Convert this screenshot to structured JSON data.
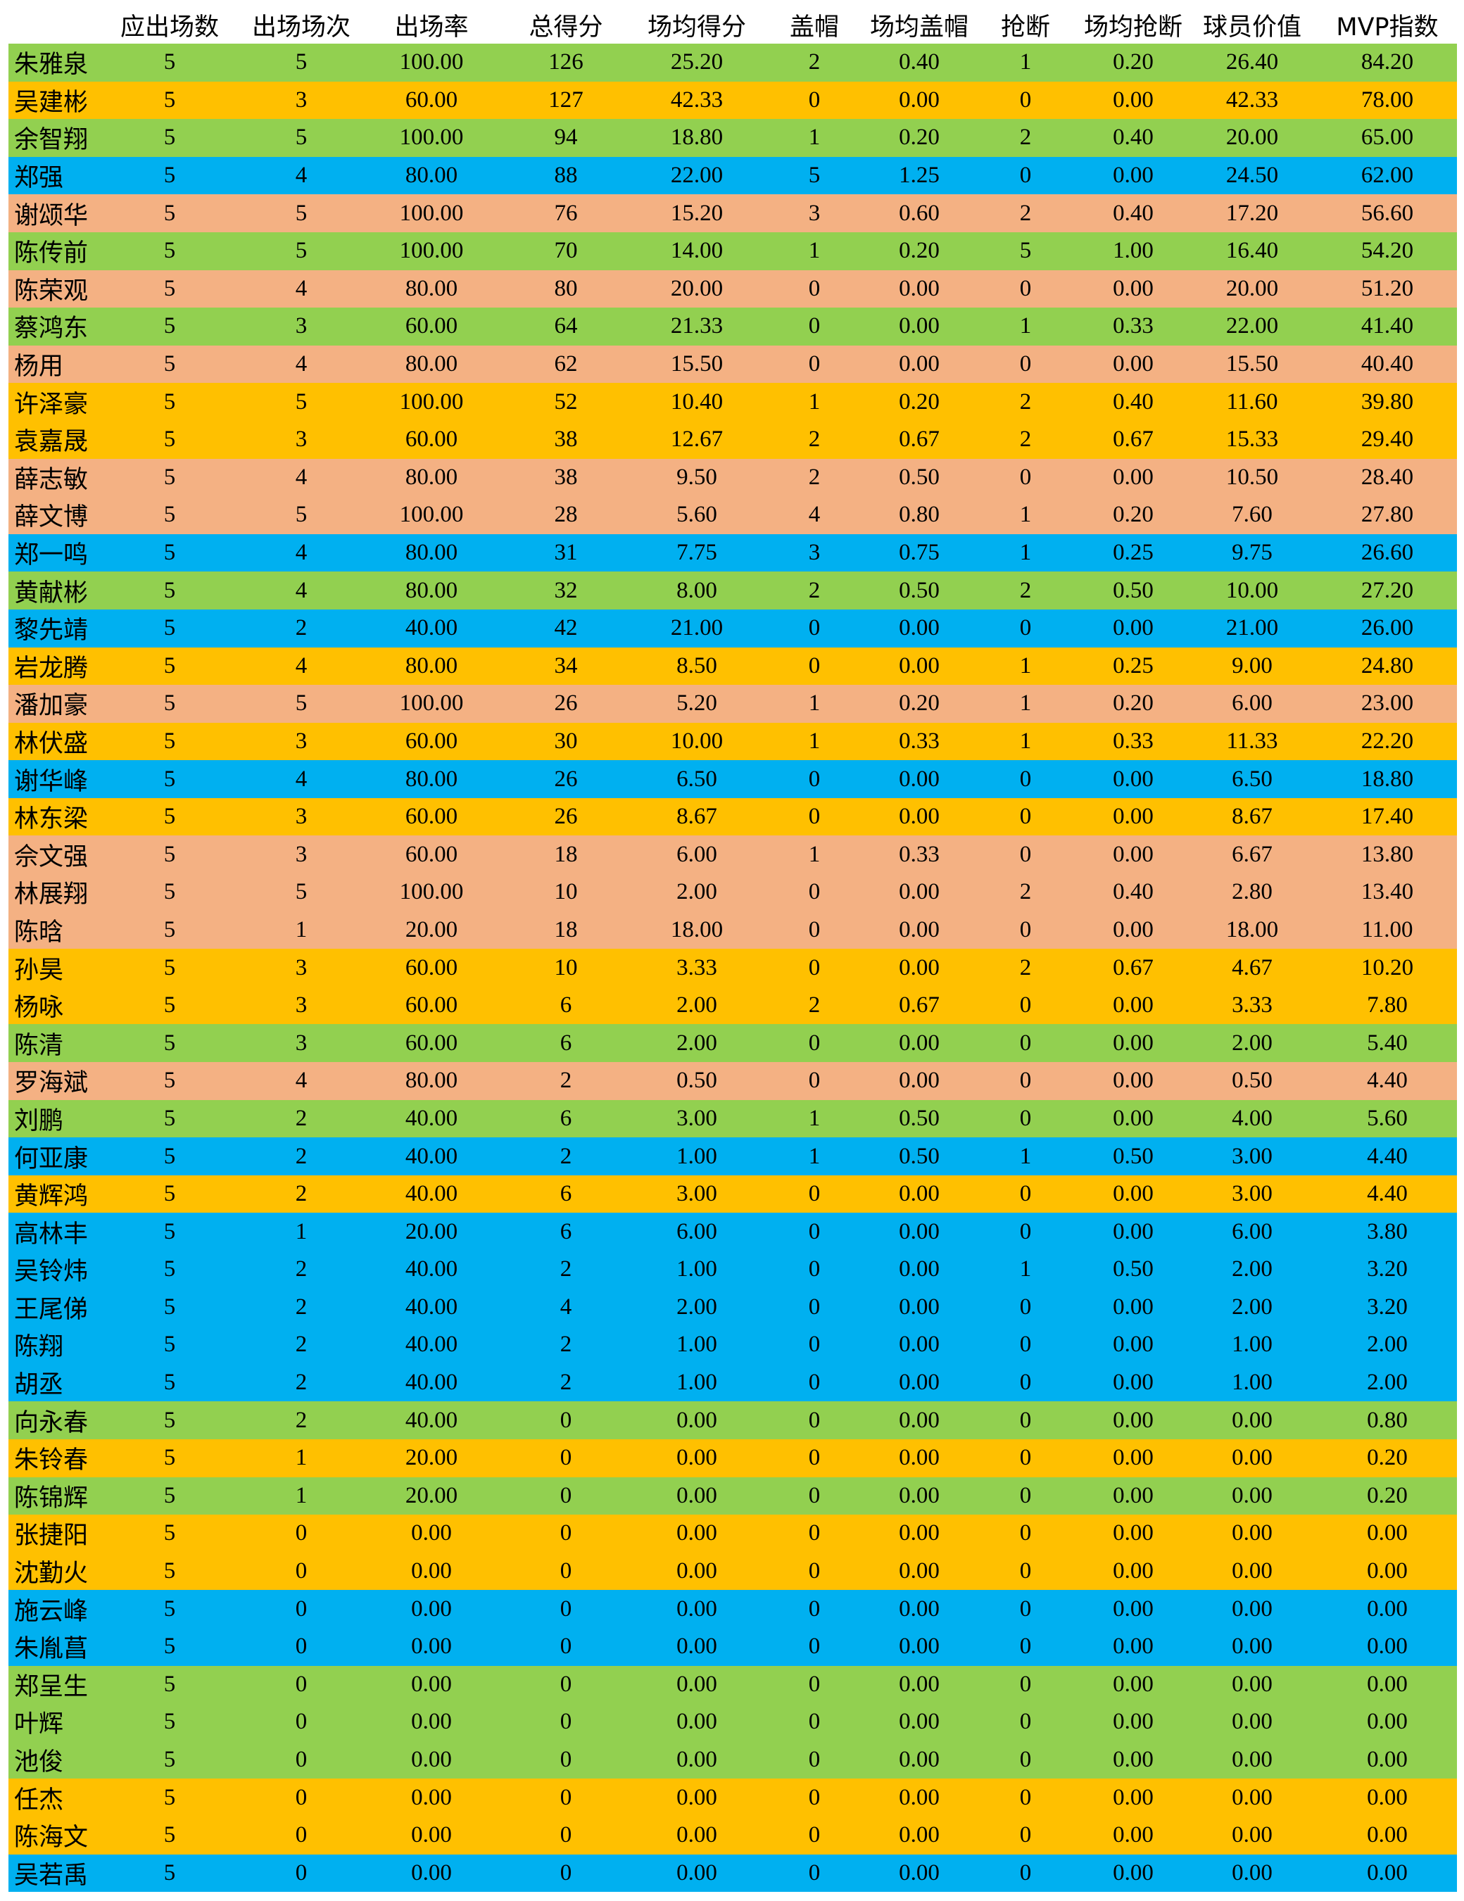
{
  "colors": {
    "green": "#92d050",
    "orange": "#ffc000",
    "blue": "#00b0f0",
    "peach": "#f4b183"
  },
  "headers": [
    "",
    "应出场数",
    "出场场次",
    "出场率",
    "总得分",
    "场均得分",
    "盖帽",
    "场均盖帽",
    "抢断",
    "场均抢断",
    "球员价值",
    "MVP指数"
  ],
  "rows": [
    {
      "c": "green",
      "v": [
        "朱雅泉",
        "5",
        "5",
        "100.00",
        "126",
        "25.20",
        "2",
        "0.40",
        "1",
        "0.20",
        "26.40",
        "84.20"
      ]
    },
    {
      "c": "orange",
      "v": [
        "吴建彬",
        "5",
        "3",
        "60.00",
        "127",
        "42.33",
        "0",
        "0.00",
        "0",
        "0.00",
        "42.33",
        "78.00"
      ]
    },
    {
      "c": "green",
      "v": [
        "余智翔",
        "5",
        "5",
        "100.00",
        "94",
        "18.80",
        "1",
        "0.20",
        "2",
        "0.40",
        "20.00",
        "65.00"
      ]
    },
    {
      "c": "blue",
      "v": [
        " 郑强",
        "5",
        "4",
        "80.00",
        "88",
        "22.00",
        "5",
        "1.25",
        "0",
        "0.00",
        "24.50",
        "62.00"
      ]
    },
    {
      "c": "peach",
      "v": [
        "谢颂华",
        "5",
        "5",
        "100.00",
        "76",
        "15.20",
        "3",
        "0.60",
        "2",
        "0.40",
        "17.20",
        "56.60"
      ]
    },
    {
      "c": "green",
      "v": [
        "陈传前",
        "5",
        "5",
        "100.00",
        "70",
        "14.00",
        "1",
        "0.20",
        "5",
        "1.00",
        "16.40",
        "54.20"
      ]
    },
    {
      "c": "peach",
      "v": [
        "陈荣观",
        "5",
        "4",
        "80.00",
        "80",
        "20.00",
        "0",
        "0.00",
        "0",
        "0.00",
        "20.00",
        "51.20"
      ]
    },
    {
      "c": "green",
      "v": [
        "蔡鸿东",
        "5",
        "3",
        "60.00",
        "64",
        "21.33",
        "0",
        "0.00",
        "1",
        "0.33",
        "22.00",
        "41.40"
      ]
    },
    {
      "c": "peach",
      "v": [
        " 杨用",
        "5",
        "4",
        "80.00",
        "62",
        "15.50",
        "0",
        "0.00",
        "0",
        "0.00",
        "15.50",
        "40.40"
      ]
    },
    {
      "c": "orange",
      "v": [
        "许泽豪",
        "5",
        "5",
        "100.00",
        "52",
        "10.40",
        "1",
        "0.20",
        "2",
        "0.40",
        "11.60",
        "39.80"
      ]
    },
    {
      "c": "orange",
      "v": [
        "袁嘉晟",
        "5",
        "3",
        "60.00",
        "38",
        "12.67",
        "2",
        "0.67",
        "2",
        "0.67",
        "15.33",
        "29.40"
      ]
    },
    {
      "c": "peach",
      "v": [
        "薛志敏",
        "5",
        "4",
        "80.00",
        "38",
        "9.50",
        "2",
        "0.50",
        "0",
        "0.00",
        "10.50",
        "28.40"
      ]
    },
    {
      "c": "peach",
      "v": [
        "薛文博",
        "5",
        "5",
        "100.00",
        "28",
        "5.60",
        "4",
        "0.80",
        "1",
        "0.20",
        "7.60",
        "27.80"
      ]
    },
    {
      "c": "blue",
      "v": [
        "郑一鸣",
        "5",
        "4",
        "80.00",
        "31",
        "7.75",
        "3",
        "0.75",
        "1",
        "0.25",
        "9.75",
        "26.60"
      ]
    },
    {
      "c": "green",
      "v": [
        "黄献彬",
        "5",
        "4",
        "80.00",
        "32",
        "8.00",
        "2",
        "0.50",
        "2",
        "0.50",
        "10.00",
        "27.20"
      ]
    },
    {
      "c": "blue",
      "v": [
        "黎先靖",
        "5",
        "2",
        "40.00",
        "42",
        "21.00",
        "0",
        "0.00",
        "0",
        "0.00",
        "21.00",
        "26.00"
      ]
    },
    {
      "c": "orange",
      "v": [
        "岩龙腾",
        "5",
        "4",
        "80.00",
        "34",
        "8.50",
        "0",
        "0.00",
        "1",
        "0.25",
        "9.00",
        "24.80"
      ]
    },
    {
      "c": "peach",
      "v": [
        "潘加豪",
        "5",
        "5",
        "100.00",
        "26",
        "5.20",
        "1",
        "0.20",
        "1",
        "0.20",
        "6.00",
        "23.00"
      ]
    },
    {
      "c": "orange",
      "v": [
        "林伏盛",
        "5",
        "3",
        "60.00",
        "30",
        "10.00",
        "1",
        "0.33",
        "1",
        "0.33",
        "11.33",
        "22.20"
      ]
    },
    {
      "c": "blue",
      "v": [
        "谢华峰",
        "5",
        "4",
        "80.00",
        "26",
        "6.50",
        "0",
        "0.00",
        "0",
        "0.00",
        "6.50",
        "18.80"
      ]
    },
    {
      "c": "orange",
      "v": [
        "林东梁",
        "5",
        "3",
        "60.00",
        "26",
        "8.67",
        "0",
        "0.00",
        "0",
        "0.00",
        "8.67",
        "17.40"
      ]
    },
    {
      "c": "peach",
      "v": [
        "佘文强",
        "5",
        "3",
        "60.00",
        "18",
        "6.00",
        "1",
        "0.33",
        "0",
        "0.00",
        "6.67",
        "13.80"
      ]
    },
    {
      "c": "peach",
      "v": [
        "林展翔",
        "5",
        "5",
        "100.00",
        "10",
        "2.00",
        "0",
        "0.00",
        "2",
        "0.40",
        "2.80",
        "13.40"
      ]
    },
    {
      "c": "peach",
      "v": [
        " 陈晗",
        "5",
        "1",
        "20.00",
        "18",
        "18.00",
        "0",
        "0.00",
        "0",
        "0.00",
        "18.00",
        "11.00"
      ]
    },
    {
      "c": "orange",
      "v": [
        " 孙昊",
        "5",
        "3",
        "60.00",
        "10",
        "3.33",
        "0",
        "0.00",
        "2",
        "0.67",
        "4.67",
        "10.20"
      ]
    },
    {
      "c": "orange",
      "v": [
        " 杨咏",
        "5",
        "3",
        "60.00",
        "6",
        "2.00",
        "2",
        "0.67",
        "0",
        "0.00",
        "3.33",
        "7.80"
      ]
    },
    {
      "c": "green",
      "v": [
        " 陈清",
        "5",
        "3",
        "60.00",
        "6",
        "2.00",
        "0",
        "0.00",
        "0",
        "0.00",
        "2.00",
        "5.40"
      ]
    },
    {
      "c": "peach",
      "v": [
        "罗海斌",
        "5",
        "4",
        "80.00",
        "2",
        "0.50",
        "0",
        "0.00",
        "0",
        "0.00",
        "0.50",
        "4.40"
      ]
    },
    {
      "c": "green",
      "v": [
        " 刘鹏",
        "5",
        "2",
        "40.00",
        "6",
        "3.00",
        "1",
        "0.50",
        "0",
        "0.00",
        "4.00",
        "5.60"
      ]
    },
    {
      "c": "blue",
      "v": [
        "何亚康",
        "5",
        "2",
        "40.00",
        "2",
        "1.00",
        "1",
        "0.50",
        "1",
        "0.50",
        "3.00",
        "4.40"
      ]
    },
    {
      "c": "orange",
      "v": [
        "黄辉鸿",
        "5",
        "2",
        "40.00",
        "6",
        "3.00",
        "0",
        "0.00",
        "0",
        "0.00",
        "3.00",
        "4.40"
      ]
    },
    {
      "c": "blue",
      "v": [
        "高林丰",
        "5",
        "1",
        "20.00",
        "6",
        "6.00",
        "0",
        "0.00",
        "0",
        "0.00",
        "6.00",
        "3.80"
      ]
    },
    {
      "c": "blue",
      "v": [
        "吴铃炜",
        "5",
        "2",
        "40.00",
        "2",
        "1.00",
        "0",
        "0.00",
        "1",
        "0.50",
        "2.00",
        "3.20"
      ]
    },
    {
      "c": "blue",
      "v": [
        "王尾俤",
        "5",
        "2",
        "40.00",
        "4",
        "2.00",
        "0",
        "0.00",
        "0",
        "0.00",
        "2.00",
        "3.20"
      ]
    },
    {
      "c": "blue",
      "v": [
        " 陈翔",
        "5",
        "2",
        "40.00",
        "2",
        "1.00",
        "0",
        "0.00",
        "0",
        "0.00",
        "1.00",
        "2.00"
      ]
    },
    {
      "c": "blue",
      "v": [
        " 胡丞",
        "5",
        "2",
        "40.00",
        "2",
        "1.00",
        "0",
        "0.00",
        "0",
        "0.00",
        "1.00",
        "2.00"
      ]
    },
    {
      "c": "green",
      "v": [
        "向永春",
        "5",
        "2",
        "40.00",
        "0",
        "0.00",
        "0",
        "0.00",
        "0",
        "0.00",
        "0.00",
        "0.80"
      ]
    },
    {
      "c": "orange",
      "v": [
        "朱铃春",
        "5",
        "1",
        "20.00",
        "0",
        "0.00",
        "0",
        "0.00",
        "0",
        "0.00",
        "0.00",
        "0.20"
      ]
    },
    {
      "c": "green",
      "v": [
        "陈锦辉",
        "5",
        "1",
        "20.00",
        "0",
        "0.00",
        "0",
        "0.00",
        "0",
        "0.00",
        "0.00",
        "0.20"
      ]
    },
    {
      "c": "orange",
      "v": [
        "张捷阳",
        "5",
        "0",
        "0.00",
        "0",
        "0.00",
        "0",
        "0.00",
        "0",
        "0.00",
        "0.00",
        "0.00"
      ]
    },
    {
      "c": "orange",
      "v": [
        "沈勤火",
        "5",
        "0",
        "0.00",
        "0",
        "0.00",
        "0",
        "0.00",
        "0",
        "0.00",
        "0.00",
        "0.00"
      ]
    },
    {
      "c": "blue",
      "v": [
        "施云峰",
        "5",
        "0",
        "0.00",
        "0",
        "0.00",
        "0",
        "0.00",
        "0",
        "0.00",
        "0.00",
        "0.00"
      ]
    },
    {
      "c": "blue",
      "v": [
        "朱胤菖",
        "5",
        "0",
        "0.00",
        "0",
        "0.00",
        "0",
        "0.00",
        "0",
        "0.00",
        "0.00",
        "0.00"
      ]
    },
    {
      "c": "green",
      "v": [
        "郑呈生",
        "5",
        "0",
        "0.00",
        "0",
        "0.00",
        "0",
        "0.00",
        "0",
        "0.00",
        "0.00",
        "0.00"
      ]
    },
    {
      "c": "green",
      "v": [
        " 叶辉",
        "5",
        "0",
        "0.00",
        "0",
        "0.00",
        "0",
        "0.00",
        "0",
        "0.00",
        "0.00",
        "0.00"
      ]
    },
    {
      "c": "green",
      "v": [
        " 池俊",
        "5",
        "0",
        "0.00",
        "0",
        "0.00",
        "0",
        "0.00",
        "0",
        "0.00",
        "0.00",
        "0.00"
      ]
    },
    {
      "c": "orange",
      "v": [
        " 任杰",
        "5",
        "0",
        "0.00",
        "0",
        "0.00",
        "0",
        "0.00",
        "0",
        "0.00",
        "0.00",
        "0.00"
      ]
    },
    {
      "c": "orange",
      "v": [
        "陈海文",
        "5",
        "0",
        "0.00",
        "0",
        "0.00",
        "0",
        "0.00",
        "0",
        "0.00",
        "0.00",
        "0.00"
      ]
    },
    {
      "c": "blue",
      "v": [
        "吴若禹",
        "5",
        "0",
        "0.00",
        "0",
        "0.00",
        "0",
        "0.00",
        "0",
        "0.00",
        "0.00",
        "0.00"
      ]
    }
  ]
}
